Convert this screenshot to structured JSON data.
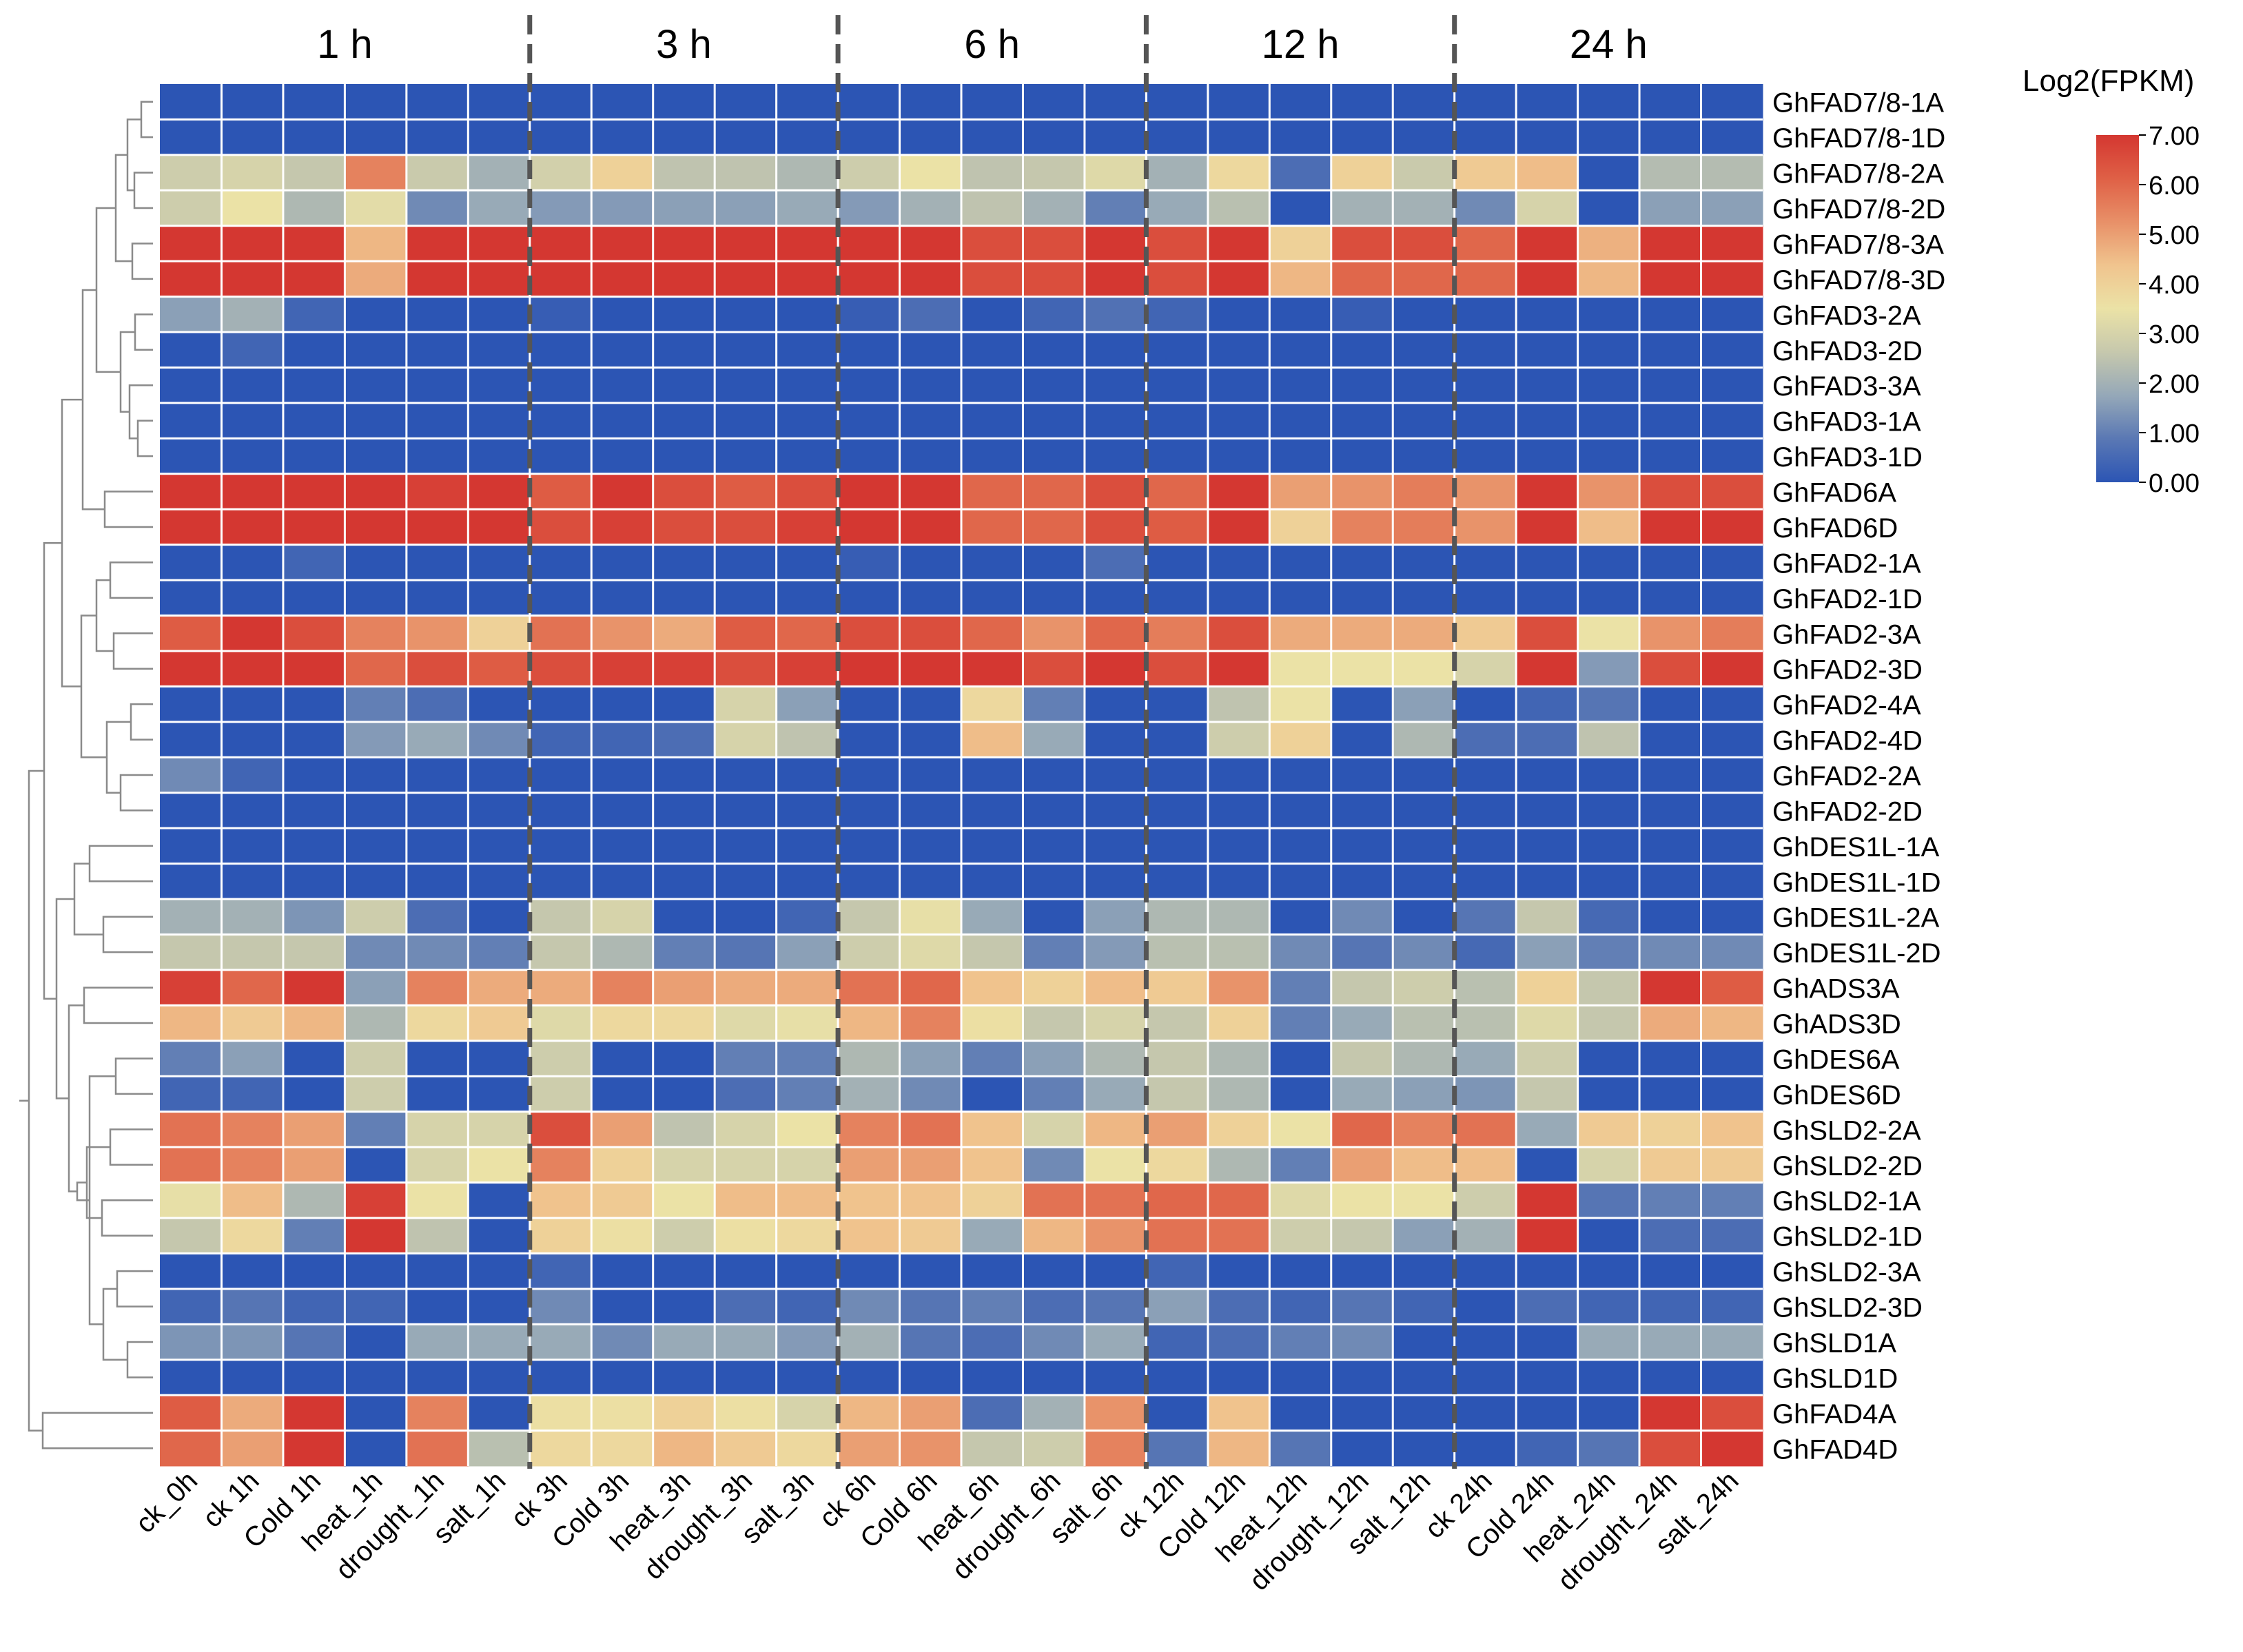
{
  "chart_data": {
    "type": "heatmap",
    "title": "",
    "legend": {
      "title": "Log2(FPKM)",
      "min": 0,
      "max": 7,
      "placement": "top-right",
      "ticks": [
        "7.00",
        "6.00",
        "5.00",
        "4.00",
        "3.00",
        "2.00",
        "1.00",
        "0.00"
      ]
    },
    "colors": [
      "#2c55b4",
      "#5a78b4",
      "#95a8b8",
      "#c6c8ad",
      "#ebe2a6",
      "#f0c48e",
      "#e89068",
      "#df6046",
      "#d43731"
    ],
    "time_groups": [
      "1 h",
      "3 h",
      "6 h",
      "12 h",
      "24 h"
    ],
    "columns": [
      "ck_0h",
      "ck 1h",
      "Cold 1h",
      "heat_1h",
      "drought_1h",
      "salt_1h",
      "ck 3h",
      "Cold 3h",
      "heat_3h",
      "drought_3h",
      "salt_3h",
      "ck 6h",
      "Cold 6h",
      "heat_6h",
      "drought_6h",
      "salt_6h",
      "ck 12h",
      "Cold 12h",
      "heat_12h",
      "drought_12h",
      "salt_12h",
      "ck 24h",
      "Cold 24h",
      "heat_24h",
      "drought_24h",
      "salt_24h"
    ],
    "rows": [
      "GhFAD7/8-1A",
      "GhFAD7/8-1D",
      "GhFAD7/8-2A",
      "GhFAD7/8-2D",
      "GhFAD7/8-3A",
      "GhFAD7/8-3D",
      "GhFAD3-2A",
      "GhFAD3-2D",
      "GhFAD3-3A",
      "GhFAD3-1A",
      "GhFAD3-1D",
      "GhFAD6A",
      "GhFAD6D",
      "GhFAD2-1A",
      "GhFAD2-1D",
      "GhFAD2-3A",
      "GhFAD2-3D",
      "GhFAD2-4A",
      "GhFAD2-4D",
      "GhFAD2-2A",
      "GhFAD2-2D",
      "GhDES1L-1A",
      "GhDES1L-1D",
      "GhDES1L-2A",
      "GhDES1L-2D",
      "GhADS3A",
      "GhADS3D",
      "GhDES6A",
      "GhDES6D",
      "GhSLD2-2A",
      "GhSLD2-2D",
      "GhSLD2-1A",
      "GhSLD2-1D",
      "GhSLD2-3A",
      "GhSLD2-3D",
      "GhSLD1A",
      "GhSLD1D",
      "GhFAD4A",
      "GhFAD4D"
    ],
    "values": [
      [
        0.0,
        0.0,
        0.0,
        0.0,
        0.0,
        0.0,
        0.0,
        0.0,
        0.0,
        0.0,
        0.0,
        0.0,
        0.0,
        0.0,
        0.0,
        0.0,
        0.0,
        0.0,
        0.0,
        0.0,
        0.0,
        0.0,
        0.0,
        0.0,
        0.0,
        0.0
      ],
      [
        0.0,
        0.0,
        0.0,
        0.0,
        0.0,
        0.0,
        0.0,
        0.0,
        0.0,
        0.0,
        0.0,
        0.0,
        0.0,
        0.0,
        0.0,
        0.0,
        0.0,
        0.0,
        0.0,
        0.0,
        0.0,
        0.0,
        0.0,
        0.0,
        0.0,
        0.0
      ],
      [
        2.8,
        3.0,
        2.6,
        5.5,
        2.7,
        2.0,
        2.9,
        4.0,
        2.5,
        2.5,
        2.2,
        2.8,
        3.5,
        2.5,
        2.6,
        3.2,
        2.0,
        3.8,
        0.6,
        4.0,
        2.7,
        4.2,
        4.5,
        0.0,
        2.3,
        2.3
      ],
      [
        2.8,
        3.5,
        2.2,
        3.3,
        1.2,
        1.8,
        1.5,
        1.5,
        1.6,
        1.6,
        1.8,
        1.5,
        2.0,
        2.5,
        2.0,
        1.0,
        1.8,
        2.4,
        0.0,
        2.0,
        2.0,
        1.2,
        3.0,
        0.0,
        1.6,
        1.6
      ],
      [
        7.0,
        7.0,
        7.0,
        4.6,
        7.0,
        7.0,
        7.0,
        7.0,
        7.0,
        7.0,
        7.0,
        7.0,
        7.0,
        6.5,
        6.5,
        7.0,
        6.5,
        7.0,
        4.0,
        6.5,
        6.5,
        6.0,
        7.0,
        4.7,
        7.0,
        7.0
      ],
      [
        7.0,
        7.0,
        7.0,
        4.8,
        7.0,
        7.0,
        7.0,
        7.0,
        7.0,
        7.0,
        7.0,
        7.0,
        7.0,
        6.5,
        6.5,
        7.0,
        6.5,
        7.0,
        4.6,
        6.0,
        6.0,
        6.0,
        7.0,
        4.6,
        7.0,
        7.0
      ],
      [
        1.6,
        2.0,
        0.4,
        0.0,
        0.0,
        0.0,
        0.2,
        0.0,
        0.0,
        0.0,
        0.0,
        0.2,
        0.6,
        0.0,
        0.4,
        0.7,
        0.4,
        0.0,
        0.0,
        0.2,
        0.0,
        0.0,
        0.0,
        0.0,
        0.0,
        0.0
      ],
      [
        0.0,
        0.4,
        0.0,
        0.0,
        0.0,
        0.0,
        0.0,
        0.0,
        0.0,
        0.0,
        0.0,
        0.0,
        0.0,
        0.0,
        0.0,
        0.0,
        0.0,
        0.0,
        0.0,
        0.0,
        0.0,
        0.0,
        0.0,
        0.0,
        0.0,
        0.0
      ],
      [
        0.0,
        0.0,
        0.0,
        0.0,
        0.0,
        0.0,
        0.0,
        0.0,
        0.0,
        0.0,
        0.0,
        0.0,
        0.0,
        0.0,
        0.0,
        0.0,
        0.0,
        0.0,
        0.0,
        0.0,
        0.0,
        0.0,
        0.0,
        0.0,
        0.0,
        0.0
      ],
      [
        0.0,
        0.0,
        0.0,
        0.0,
        0.0,
        0.0,
        0.0,
        0.0,
        0.0,
        0.0,
        0.0,
        0.0,
        0.0,
        0.0,
        0.0,
        0.0,
        0.0,
        0.0,
        0.0,
        0.0,
        0.0,
        0.0,
        0.0,
        0.0,
        0.0,
        0.0
      ],
      [
        0.0,
        0.0,
        0.0,
        0.0,
        0.0,
        0.0,
        0.0,
        0.0,
        0.0,
        0.0,
        0.0,
        0.0,
        0.0,
        0.0,
        0.0,
        0.0,
        0.0,
        0.0,
        0.0,
        0.0,
        0.0,
        0.0,
        0.0,
        0.0,
        0.0,
        0.0
      ],
      [
        7.0,
        7.0,
        7.0,
        7.0,
        6.8,
        7.0,
        6.2,
        7.0,
        6.5,
        6.2,
        6.5,
        7.0,
        7.0,
        6.0,
        6.0,
        6.5,
        6.0,
        7.0,
        5.0,
        5.2,
        5.6,
        5.2,
        7.0,
        5.2,
        6.5,
        6.5
      ],
      [
        7.0,
        7.0,
        7.0,
        7.0,
        7.0,
        7.0,
        6.5,
        6.8,
        6.5,
        6.5,
        6.8,
        7.0,
        7.0,
        6.0,
        6.0,
        6.5,
        6.2,
        7.0,
        4.0,
        5.5,
        5.6,
        5.2,
        7.0,
        4.5,
        7.0,
        7.0
      ],
      [
        0.0,
        0.0,
        0.4,
        0.0,
        0.0,
        0.0,
        0.0,
        0.0,
        0.0,
        0.0,
        0.0,
        0.2,
        0.0,
        0.0,
        0.0,
        0.6,
        0.0,
        0.0,
        0.0,
        0.0,
        0.0,
        0.0,
        0.0,
        0.0,
        0.0,
        0.0
      ],
      [
        0.0,
        0.0,
        0.0,
        0.0,
        0.0,
        0.0,
        0.0,
        0.0,
        0.0,
        0.0,
        0.0,
        0.0,
        0.0,
        0.0,
        0.0,
        0.0,
        0.0,
        0.0,
        0.0,
        0.0,
        0.0,
        0.0,
        0.0,
        0.0,
        0.0,
        0.0
      ],
      [
        6.2,
        7.0,
        6.5,
        5.5,
        5.2,
        4.0,
        5.8,
        5.2,
        4.8,
        6.2,
        6.0,
        6.5,
        6.5,
        6.0,
        5.2,
        6.0,
        5.6,
        6.5,
        4.8,
        4.8,
        4.8,
        4.2,
        6.5,
        3.5,
        5.2,
        5.6
      ],
      [
        7.0,
        7.0,
        7.0,
        6.0,
        6.5,
        6.2,
        6.5,
        6.8,
        6.8,
        6.5,
        6.8,
        7.0,
        7.0,
        7.0,
        6.5,
        7.0,
        6.5,
        7.0,
        3.5,
        3.5,
        3.5,
        3.0,
        7.0,
        1.5,
        6.5,
        7.0
      ],
      [
        0.0,
        0.0,
        0.0,
        1.0,
        0.6,
        0.0,
        0.0,
        0.0,
        0.0,
        3.0,
        1.6,
        0.0,
        0.0,
        3.8,
        1.0,
        0.0,
        0.0,
        2.5,
        3.5,
        0.0,
        1.6,
        0.0,
        0.4,
        0.8,
        0.0,
        0.0
      ],
      [
        0.0,
        0.0,
        0.0,
        1.5,
        1.8,
        1.2,
        0.4,
        0.4,
        0.6,
        3.0,
        2.5,
        0.0,
        0.0,
        4.5,
        1.8,
        0.0,
        0.0,
        2.8,
        4.0,
        0.0,
        2.2,
        0.6,
        0.6,
        2.5,
        0.0,
        0.0
      ],
      [
        1.2,
        0.4,
        0.0,
        0.0,
        0.0,
        0.0,
        0.0,
        0.0,
        0.0,
        0.0,
        0.0,
        0.0,
        0.0,
        0.0,
        0.0,
        0.0,
        0.0,
        0.0,
        0.0,
        0.0,
        0.0,
        0.0,
        0.0,
        0.0,
        0.0,
        0.0
      ],
      [
        0.0,
        0.0,
        0.0,
        0.0,
        0.0,
        0.0,
        0.0,
        0.0,
        0.0,
        0.0,
        0.0,
        0.0,
        0.0,
        0.0,
        0.0,
        0.0,
        0.0,
        0.0,
        0.0,
        0.0,
        0.0,
        0.0,
        0.0,
        0.0,
        0.0,
        0.0
      ],
      [
        0.0,
        0.0,
        0.0,
        0.0,
        0.0,
        0.0,
        0.0,
        0.0,
        0.0,
        0.0,
        0.0,
        0.0,
        0.0,
        0.0,
        0.0,
        0.0,
        0.0,
        0.0,
        0.0,
        0.0,
        0.0,
        0.0,
        0.0,
        0.0,
        0.0,
        0.0
      ],
      [
        0.0,
        0.0,
        0.0,
        0.0,
        0.0,
        0.0,
        0.0,
        0.0,
        0.0,
        0.0,
        0.0,
        0.0,
        0.0,
        0.0,
        0.0,
        0.0,
        0.0,
        0.0,
        0.0,
        0.0,
        0.0,
        0.0,
        0.0,
        0.0,
        0.0,
        0.0
      ],
      [
        2.0,
        2.0,
        1.4,
        2.8,
        0.6,
        0.0,
        2.6,
        3.0,
        0.0,
        0.0,
        0.4,
        2.6,
        3.4,
        1.8,
        0.0,
        1.6,
        2.2,
        2.2,
        0.0,
        1.2,
        0.0,
        0.8,
        2.6,
        0.5,
        0.0,
        0.0
      ],
      [
        2.6,
        2.6,
        2.6,
        1.2,
        1.2,
        1.0,
        2.6,
        2.2,
        1.0,
        0.8,
        1.6,
        2.8,
        3.2,
        2.6,
        1.0,
        1.5,
        2.4,
        2.4,
        1.2,
        0.8,
        1.2,
        0.5,
        1.6,
        1.0,
        1.2,
        1.2
      ],
      [
        6.8,
        6.0,
        7.0,
        1.6,
        5.5,
        4.8,
        4.8,
        5.5,
        5.0,
        4.8,
        4.8,
        5.8,
        6.0,
        4.4,
        4.0,
        4.5,
        4.2,
        5.2,
        1.0,
        2.6,
        2.8,
        2.4,
        4.0,
        2.6,
        7.0,
        6.2
      ],
      [
        4.6,
        4.2,
        4.6,
        2.2,
        3.8,
        4.2,
        3.2,
        3.8,
        3.8,
        3.2,
        3.4,
        4.6,
        5.5,
        3.6,
        2.6,
        3.0,
        2.6,
        4.0,
        1.0,
        1.8,
        2.4,
        2.4,
        3.2,
        2.6,
        4.8,
        4.6
      ],
      [
        1.0,
        1.6,
        0.0,
        2.8,
        0.0,
        0.0,
        2.8,
        0.0,
        0.0,
        1.0,
        1.0,
        2.2,
        1.6,
        1.0,
        1.6,
        2.2,
        2.6,
        2.2,
        0.0,
        2.6,
        2.2,
        1.8,
        2.8,
        0.0,
        0.0,
        0.0
      ],
      [
        0.4,
        0.4,
        0.0,
        2.8,
        0.0,
        0.0,
        2.8,
        0.0,
        0.0,
        0.6,
        1.0,
        2.0,
        1.2,
        0.0,
        1.0,
        1.8,
        2.6,
        2.2,
        0.0,
        1.8,
        1.6,
        1.4,
        2.6,
        0.0,
        0.0,
        0.0
      ],
      [
        5.8,
        5.5,
        5.0,
        1.0,
        3.0,
        3.0,
        6.5,
        5.0,
        2.5,
        3.0,
        3.5,
        5.5,
        5.8,
        4.4,
        3.0,
        4.6,
        5.0,
        4.0,
        3.5,
        6.0,
        5.5,
        5.8,
        1.8,
        4.2,
        4.0,
        4.4
      ],
      [
        5.8,
        5.5,
        5.0,
        0.0,
        3.0,
        3.5,
        5.5,
        4.0,
        3.0,
        3.0,
        3.0,
        5.0,
        5.0,
        4.4,
        1.2,
        3.5,
        3.8,
        2.2,
        1.0,
        5.0,
        4.5,
        4.5,
        0.0,
        3.0,
        4.2,
        4.2
      ],
      [
        3.4,
        4.5,
        2.2,
        6.8,
        3.5,
        0.0,
        4.4,
        4.2,
        3.5,
        4.5,
        4.5,
        4.4,
        4.4,
        4.0,
        5.8,
        5.8,
        6.0,
        6.0,
        3.2,
        3.5,
        3.5,
        2.8,
        7.0,
        0.8,
        1.0,
        1.0
      ],
      [
        2.6,
        3.8,
        1.0,
        7.0,
        2.5,
        0.0,
        4.0,
        3.6,
        2.8,
        3.6,
        3.8,
        4.4,
        4.2,
        1.8,
        4.6,
        5.2,
        5.8,
        5.8,
        2.8,
        2.6,
        1.6,
        2.0,
        7.0,
        0.0,
        0.6,
        0.6
      ],
      [
        0.0,
        0.0,
        0.0,
        0.0,
        0.0,
        0.0,
        0.4,
        0.0,
        0.0,
        0.0,
        0.0,
        0.0,
        0.0,
        0.0,
        0.0,
        0.0,
        0.4,
        0.0,
        0.0,
        0.0,
        0.0,
        0.0,
        0.0,
        0.0,
        0.0,
        0.0
      ],
      [
        0.4,
        0.8,
        0.4,
        0.4,
        0.0,
        0.0,
        1.2,
        0.0,
        0.0,
        0.6,
        0.4,
        1.2,
        0.8,
        1.0,
        0.6,
        0.8,
        1.6,
        0.6,
        0.4,
        0.8,
        0.4,
        0.0,
        0.6,
        0.4,
        0.4,
        0.4
      ],
      [
        1.4,
        1.4,
        0.8,
        0.0,
        1.8,
        1.8,
        1.8,
        1.2,
        1.8,
        1.8,
        1.5,
        2.0,
        0.8,
        0.6,
        1.2,
        1.8,
        0.4,
        0.6,
        1.0,
        1.2,
        0.0,
        0.0,
        0.0,
        1.8,
        1.8,
        1.8
      ],
      [
        0.0,
        0.0,
        0.0,
        0.0,
        0.0,
        0.0,
        0.0,
        0.0,
        0.0,
        0.0,
        0.0,
        0.0,
        0.0,
        0.0,
        0.0,
        0.0,
        0.0,
        0.0,
        0.0,
        0.0,
        0.0,
        0.0,
        0.0,
        0.0,
        0.0,
        0.0
      ],
      [
        6.2,
        4.8,
        7.0,
        0.0,
        5.5,
        0.0,
        3.6,
        3.6,
        4.0,
        3.6,
        3.0,
        4.6,
        5.0,
        0.6,
        2.0,
        5.2,
        0.0,
        4.4,
        0.0,
        0.0,
        0.0,
        0.0,
        0.0,
        0.0,
        7.0,
        6.5
      ],
      [
        6.0,
        5.0,
        7.0,
        0.0,
        5.8,
        2.4,
        3.8,
        3.8,
        4.6,
        4.2,
        3.8,
        5.0,
        5.2,
        2.6,
        2.8,
        5.5,
        0.8,
        4.6,
        0.8,
        0.0,
        0.0,
        0.0,
        0.4,
        0.8,
        6.5,
        7.0
      ]
    ]
  }
}
